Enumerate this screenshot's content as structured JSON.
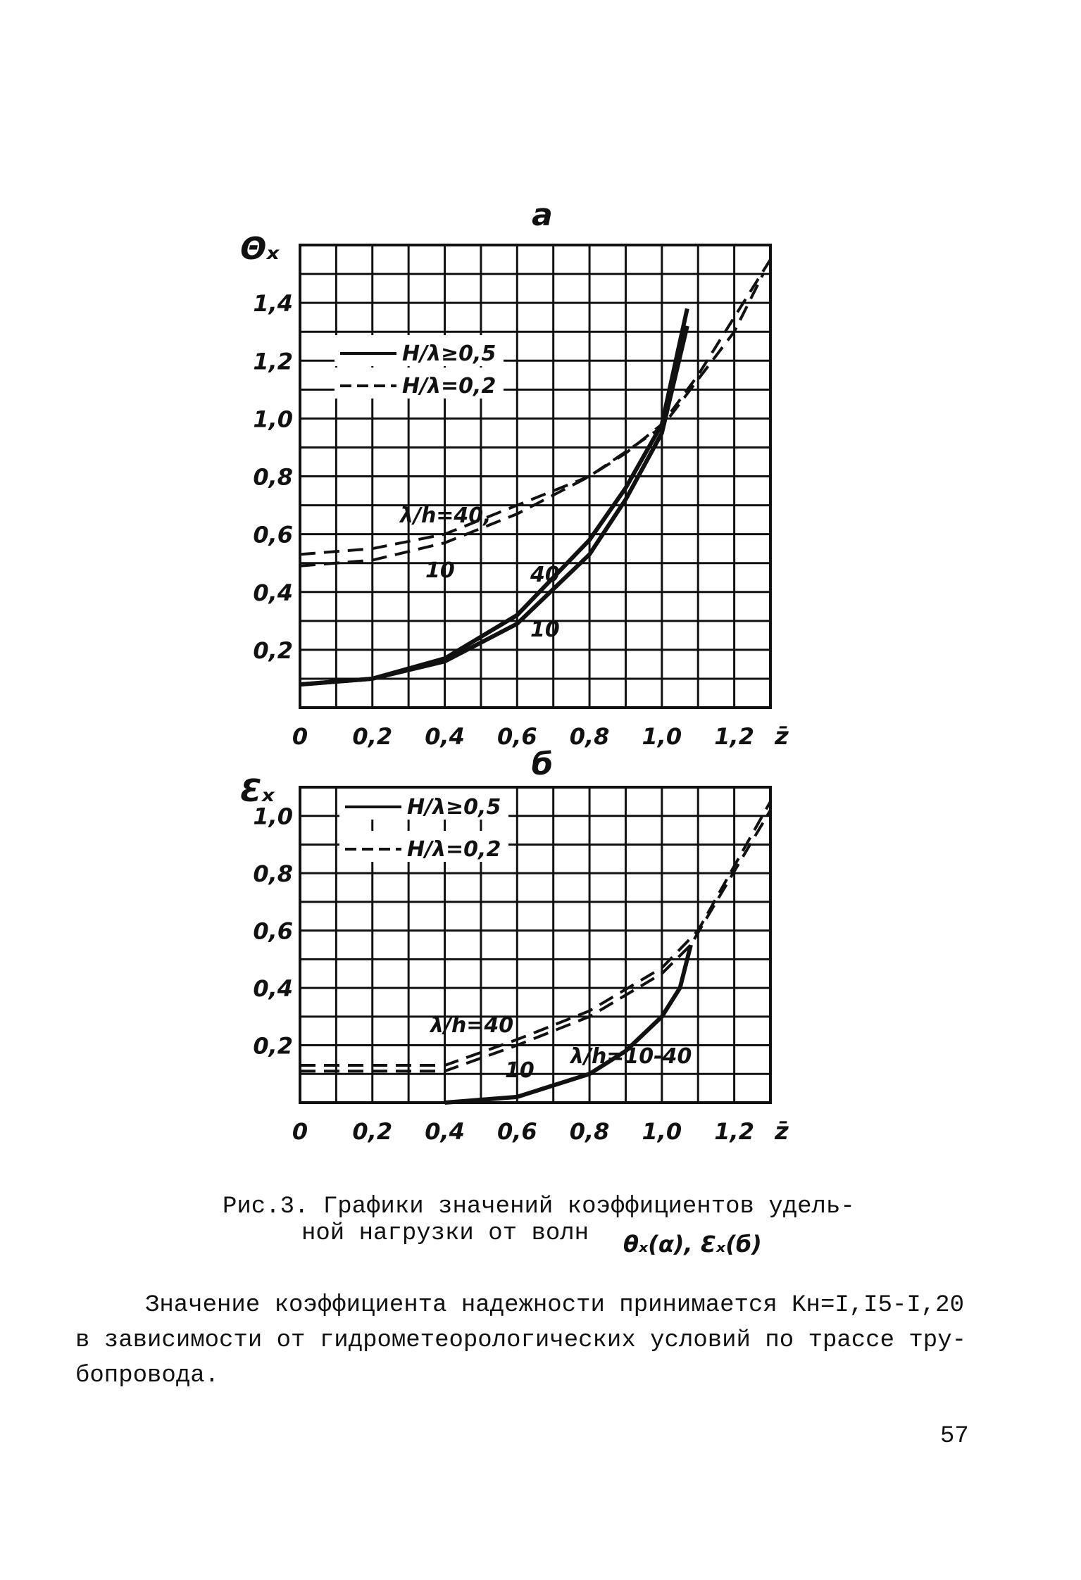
{
  "chart_data": [
    {
      "type": "line",
      "title": "a",
      "y_label": "Θₓ",
      "x_label": "z̄",
      "xlim": [
        0,
        1.3
      ],
      "ylim": [
        0,
        1.6
      ],
      "xticks": [
        0,
        {
          "value": 0.2,
          "label": "0,2"
        },
        {
          "value": 0.4,
          "label": "0,4"
        },
        {
          "value": 0.6,
          "label": "0,6"
        },
        {
          "value": 0.8,
          "label": "0,8"
        },
        {
          "value": 1.0,
          "label": "1,0"
        },
        {
          "value": 1.2,
          "label": "1,2"
        }
      ],
      "yticks": [
        {
          "value": 0.2,
          "label": "0,2"
        },
        {
          "value": 0.4,
          "label": "0,4"
        },
        {
          "value": 0.6,
          "label": "0,6"
        },
        {
          "value": 0.8,
          "label": "0,8"
        },
        {
          "value": 1.0,
          "label": "1,0"
        },
        {
          "value": 1.2,
          "label": "1,2"
        },
        {
          "value": 1.4,
          "label": "1,4"
        }
      ],
      "xgrid": [
        0,
        0.1,
        0.2,
        0.3,
        0.4,
        0.5,
        0.6,
        0.7,
        0.8,
        0.9,
        1.0,
        1.1,
        1.2,
        1.3
      ],
      "ygrid": [
        0,
        0.1,
        0.2,
        0.3,
        0.4,
        0.5,
        0.6,
        0.7,
        0.8,
        0.9,
        1.0,
        1.1,
        1.2,
        1.3,
        1.4,
        1.5,
        1.6
      ],
      "legend": [
        {
          "text": "H/λ≥0,5",
          "style": "solid"
        },
        {
          "text": "H/λ=0,2",
          "style": "dashed"
        }
      ],
      "series": [
        {
          "label": "40",
          "style": "solid",
          "color": "#111",
          "x": [
            0,
            0.2,
            0.4,
            0.6,
            0.8,
            0.9,
            1.0,
            1.07
          ],
          "values": [
            0.08,
            0.1,
            0.17,
            0.32,
            0.58,
            0.76,
            0.98,
            1.38
          ]
        },
        {
          "label": "10",
          "style": "solid",
          "color": "#111",
          "x": [
            0,
            0.2,
            0.4,
            0.6,
            0.8,
            0.9,
            1.0,
            1.07
          ],
          "values": [
            0.08,
            0.1,
            0.16,
            0.29,
            0.53,
            0.72,
            0.95,
            1.32
          ]
        },
        {
          "label": "λ/h=40,",
          "style": "dashed",
          "color": "#111",
          "x": [
            0,
            0.2,
            0.4,
            0.6,
            0.8,
            0.9,
            1.0,
            1.1,
            1.3
          ],
          "values": [
            0.53,
            0.55,
            0.6,
            0.7,
            0.8,
            0.88,
            0.98,
            1.15,
            1.55
          ]
        },
        {
          "label": "10",
          "style": "dashed",
          "color": "#111",
          "x": [
            0,
            0.2,
            0.4,
            0.6,
            0.8,
            1.0,
            1.2,
            1.28
          ],
          "values": [
            0.49,
            0.51,
            0.57,
            0.67,
            0.8,
            0.97,
            1.3,
            1.5
          ]
        }
      ]
    },
    {
      "type": "line",
      "title": "б",
      "y_label": "Ɛₓ",
      "x_label": "z̄",
      "xlim": [
        0,
        1.3
      ],
      "ylim": [
        0,
        1.1
      ],
      "xticks": [
        0,
        {
          "value": 0.2,
          "label": "0,2"
        },
        {
          "value": 0.4,
          "label": "0,4"
        },
        {
          "value": 0.6,
          "label": "0,6"
        },
        {
          "value": 0.8,
          "label": "0,8"
        },
        {
          "value": 1.0,
          "label": "1,0"
        },
        {
          "value": 1.2,
          "label": "1,2"
        }
      ],
      "yticks": [
        {
          "value": 0.2,
          "label": "0,2"
        },
        {
          "value": 0.4,
          "label": "0,4"
        },
        {
          "value": 0.6,
          "label": "0,6"
        },
        {
          "value": 0.8,
          "label": "0,8"
        },
        {
          "value": 1.0,
          "label": "1,0"
        }
      ],
      "xgrid": [
        0,
        0.1,
        0.2,
        0.3,
        0.4,
        0.5,
        0.6,
        0.7,
        0.8,
        0.9,
        1.0,
        1.1,
        1.2,
        1.3
      ],
      "ygrid": [
        0,
        0.1,
        0.2,
        0.3,
        0.4,
        0.5,
        0.6,
        0.7,
        0.8,
        0.9,
        1.0,
        1.1
      ],
      "legend": [
        {
          "text": "H/λ≥0,5",
          "style": "solid"
        },
        {
          "text": "H/λ=0,2",
          "style": "dashed"
        }
      ],
      "series": [
        {
          "label": "λ/h=10-40",
          "style": "solid",
          "color": "#111",
          "x": [
            0.4,
            0.6,
            0.8,
            0.9,
            1.0,
            1.05,
            1.08
          ],
          "values": [
            0,
            0.02,
            0.1,
            0.18,
            0.3,
            0.4,
            0.55
          ]
        },
        {
          "label": "λ/h=40",
          "style": "dashed",
          "color": "#111",
          "x": [
            0,
            0.4,
            0.6,
            0.8,
            1.0,
            1.1,
            1.3
          ],
          "values": [
            0.13,
            0.13,
            0.22,
            0.32,
            0.47,
            0.6,
            1.05
          ]
        },
        {
          "label": "10",
          "style": "dashed",
          "color": "#111",
          "x": [
            0,
            0.4,
            0.6,
            0.8,
            1.0,
            1.08,
            1.3
          ],
          "values": [
            0.11,
            0.11,
            0.2,
            0.3,
            0.45,
            0.55,
            1.02
          ]
        }
      ]
    }
  ],
  "caption": {
    "line1": "Рис.3. Графики значений коэффициентов удель-",
    "line2": "ной нагрузки от волн",
    "formula": "θₓ(α), Ɛₓ(б)"
  },
  "paragraph": {
    "line1": "Значение коэффициента надежности принимается Kн=I,I5-I,20",
    "line2": "в зависимости от гидрометеорологических условий по трассе тру-",
    "line3": "бопровода."
  },
  "page_number": "57"
}
